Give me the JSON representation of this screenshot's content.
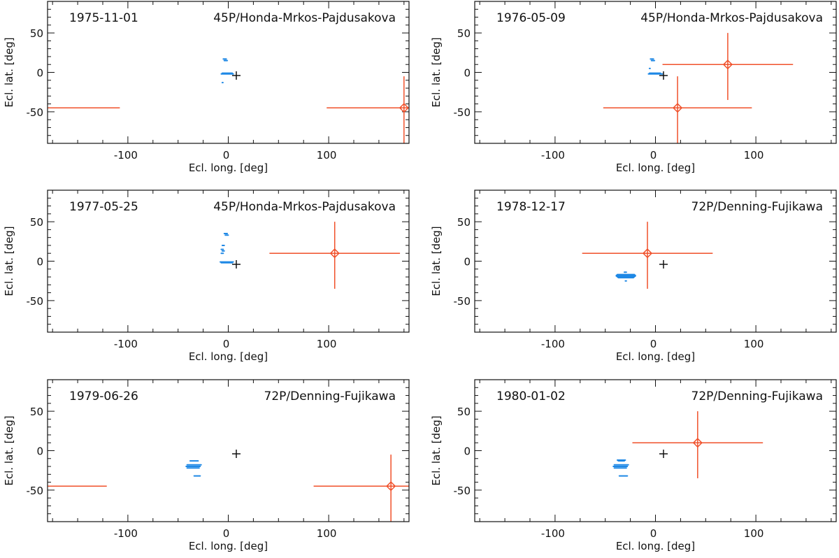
{
  "colors": {
    "frame": "#111111",
    "errorbar": "#f0502a",
    "dust": "#1e88e5",
    "sun": "#111111"
  },
  "chart_data": [
    {
      "type": "scatter",
      "date": "1975-11-01",
      "comet": "45P/Honda-Mrkos-Pajdusakova",
      "xlabel": "Ecl. long. [deg]",
      "ylabel": "Ecl. lat. [deg]",
      "xlim": [
        -180,
        180
      ],
      "ylim": [
        -90,
        90
      ],
      "xticks": [
        "-100",
        "0",
        "100"
      ],
      "xtick_values": [
        -100,
        0,
        100
      ],
      "yticks": [
        "-50",
        "0",
        "50"
      ],
      "ytick_values": [
        -50,
        0,
        50
      ],
      "marker": {
        "x": 8,
        "y": -4
      },
      "sources": [
        {
          "x": 175,
          "y": -45,
          "xerr": 77,
          "yerr_low": 45,
          "yerr_high": 40,
          "wrap": true
        }
      ],
      "dust_segments": [
        [
          -5,
          17,
          -2,
          17
        ],
        [
          -4,
          15,
          -1,
          15
        ],
        [
          -7,
          -2,
          5,
          -2
        ],
        [
          -6,
          -1,
          4,
          -1
        ],
        [
          -6,
          -13,
          -6,
          -13
        ]
      ]
    },
    {
      "type": "scatter",
      "date": "1976-05-09",
      "comet": "45P/Honda-Mrkos-Pajdusakova",
      "xlabel": "Ecl. long. [deg]",
      "ylabel": "Ecl. lat. [deg]",
      "xlim": [
        -180,
        180
      ],
      "ylim": [
        -90,
        90
      ],
      "xticks": [
        "-100",
        "0",
        "100"
      ],
      "xtick_values": [
        -100,
        0,
        100
      ],
      "yticks": [
        "-50",
        "0",
        "50"
      ],
      "ytick_values": [
        -50,
        0,
        50
      ],
      "marker": {
        "x": 8,
        "y": -4
      },
      "sources": [
        {
          "x": 72,
          "y": 10,
          "xerr": 65,
          "yerr_low": 45,
          "yerr_high": 40
        },
        {
          "x": 22,
          "y": -45,
          "xerr": 74,
          "yerr_low": 45,
          "yerr_high": 40
        }
      ],
      "dust_segments": [
        [
          -5,
          17,
          -2,
          17
        ],
        [
          -4,
          15,
          -1,
          15
        ],
        [
          -6,
          5,
          -6,
          5
        ],
        [
          -7,
          -2,
          7,
          -2
        ],
        [
          -6,
          -1,
          5,
          -1
        ]
      ]
    },
    {
      "type": "scatter",
      "date": "1977-05-25",
      "comet": "45P/Honda-Mrkos-Pajdusakova",
      "xlabel": "Ecl. long. [deg]",
      "ylabel": "Ecl. lat. [deg]",
      "xlim": [
        -180,
        180
      ],
      "ylim": [
        -90,
        90
      ],
      "xticks": [
        "-100",
        "0",
        "100"
      ],
      "xtick_values": [
        -100,
        0,
        100
      ],
      "yticks": [
        "-50",
        "0",
        "50"
      ],
      "ytick_values": [
        -50,
        0,
        50
      ],
      "marker": {
        "x": 8,
        "y": -4
      },
      "sources": [
        {
          "x": 106,
          "y": 10,
          "xerr": 65,
          "yerr_low": 45,
          "yerr_high": 40
        }
      ],
      "dust_segments": [
        [
          -4,
          35,
          -1,
          35
        ],
        [
          -3,
          33,
          0,
          33
        ],
        [
          -6,
          20,
          -4,
          20
        ],
        [
          -7,
          15,
          -5,
          15
        ],
        [
          -6,
          13,
          -4,
          13
        ],
        [
          -7,
          10,
          -5,
          10
        ],
        [
          -8,
          -1,
          5,
          -1
        ],
        [
          -7,
          -2,
          4,
          -2
        ]
      ]
    },
    {
      "type": "scatter",
      "date": "1978-12-17",
      "comet": "72P/Denning-Fujikawa",
      "xlabel": "Ecl. long. [deg]",
      "ylabel": "Ecl. lat. [deg]",
      "xlim": [
        -180,
        180
      ],
      "ylim": [
        -90,
        90
      ],
      "xticks": [
        "-100",
        "0",
        "100"
      ],
      "xtick_values": [
        -100,
        0,
        100
      ],
      "yticks": [
        "-50",
        "0",
        "50"
      ],
      "ytick_values": [
        -50,
        0,
        50
      ],
      "marker": {
        "x": 8,
        "y": -4
      },
      "sources": [
        {
          "x": -8,
          "y": 10,
          "xerr": 65,
          "yerr_low": 45,
          "yerr_high": 40
        }
      ],
      "dust_segments": [
        [
          -38,
          -17,
          -21,
          -17
        ],
        [
          -39,
          -18,
          -20,
          -18
        ],
        [
          -39,
          -19,
          -20,
          -19
        ],
        [
          -38,
          -20,
          -21,
          -20
        ],
        [
          -37,
          -21,
          -22,
          -21
        ],
        [
          -31,
          -14,
          -29,
          -14
        ],
        [
          -30,
          -25,
          -29,
          -25
        ]
      ]
    },
    {
      "type": "scatter",
      "date": "1979-06-26",
      "comet": "72P/Denning-Fujikawa",
      "xlabel": "Ecl. long. [deg]",
      "ylabel": "Ecl. lat. [deg]",
      "xlim": [
        -180,
        180
      ],
      "ylim": [
        -90,
        90
      ],
      "xticks": [
        "-100",
        "0",
        "100"
      ],
      "xtick_values": [
        -100,
        0,
        100
      ],
      "yticks": [
        "-50",
        "0",
        "50"
      ],
      "ytick_values": [
        -50,
        0,
        50
      ],
      "marker": {
        "x": 8,
        "y": -4
      },
      "sources": [
        {
          "x": 162,
          "y": -45,
          "xerr": 77,
          "yerr_low": 45,
          "yerr_high": 40,
          "wrap": true
        }
      ],
      "dust_segments": [
        [
          -38,
          -13,
          -30,
          -13
        ],
        [
          -41,
          -18,
          -27,
          -18
        ],
        [
          -42,
          -20,
          -28,
          -20
        ],
        [
          -41,
          -22,
          -29,
          -22
        ],
        [
          -34,
          -32,
          -28,
          -32
        ]
      ]
    },
    {
      "type": "scatter",
      "date": "1980-01-02",
      "comet": "72P/Denning-Fujikawa",
      "xlabel": "Ecl. long. [deg]",
      "ylabel": "Ecl. lat. [deg]",
      "xlim": [
        -180,
        180
      ],
      "ylim": [
        -90,
        90
      ],
      "xticks": [
        "-100",
        "0",
        "100"
      ],
      "xtick_values": [
        -100,
        0,
        100
      ],
      "yticks": [
        "-50",
        "0",
        "50"
      ],
      "ytick_values": [
        -50,
        0,
        50
      ],
      "marker": {
        "x": 8,
        "y": -4
      },
      "sources": [
        {
          "x": 42,
          "y": 10,
          "xerr": 65,
          "yerr_low": 45,
          "yerr_high": 40
        }
      ],
      "dust_segments": [
        [
          -38,
          -12,
          -30,
          -12
        ],
        [
          -37,
          -13,
          -31,
          -13
        ],
        [
          -41,
          -18,
          -27,
          -18
        ],
        [
          -42,
          -20,
          -28,
          -20
        ],
        [
          -41,
          -22,
          -29,
          -22
        ],
        [
          -36,
          -32,
          -28,
          -32
        ]
      ]
    }
  ]
}
